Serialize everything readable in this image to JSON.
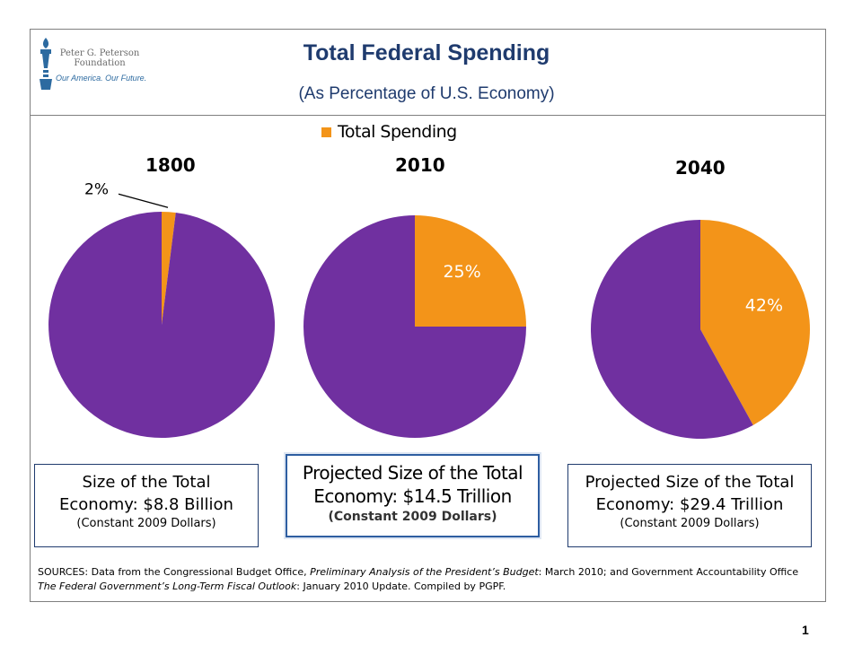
{
  "header": {
    "title": "Total Federal Spending",
    "subtitle": "(As Percentage of U.S. Economy)"
  },
  "logo": {
    "name_line1": "Peter G. Peterson",
    "name_line2": "Foundation",
    "tagline": "Our America. Our Future."
  },
  "colors": {
    "spending": "#f39419",
    "rest": "#7030a0",
    "title": "#1f3b6e",
    "box_border": "#1f3b6e"
  },
  "chart_data": [
    {
      "type": "pie",
      "title": "1800",
      "legend": [
        "Total Spending"
      ],
      "slices": [
        {
          "name": "Total Spending",
          "value": 2,
          "label": "2%"
        },
        {
          "name": "",
          "value": 98,
          "label": ""
        }
      ]
    },
    {
      "type": "pie",
      "title": "2010",
      "legend": [
        "Total Spending"
      ],
      "slices": [
        {
          "name": "Total Spending",
          "value": 25,
          "label": "25%"
        },
        {
          "name": "",
          "value": 75,
          "label": ""
        }
      ]
    },
    {
      "type": "pie",
      "title": "2040",
      "legend": [
        "Total Spending"
      ],
      "slices": [
        {
          "name": "Total Spending",
          "value": 42,
          "label": "42%"
        },
        {
          "name": "",
          "value": 58,
          "label": ""
        }
      ]
    }
  ],
  "economy_boxes": [
    {
      "line1a": "Size of the Total",
      "line1b": "Economy: $8.8 Billion",
      "line2": "(Constant 2009 Dollars)"
    },
    {
      "line1a": "Projected Size of the Total",
      "line1b": "Economy: $14.5 Trillion",
      "line2": "(Constant 2009 Dollars)"
    },
    {
      "line1a": "Projected Size of the Total",
      "line1b": "Economy: $29.4 Trillion",
      "line2": "(Constant 2009 Dollars)"
    }
  ],
  "sources": {
    "prefix": "SOURCES: Data from the Congressional Budget Office, ",
    "doc1": "Preliminary Analysis of the President’s Budget",
    "mid1": ": March 2010; and Government Accountability Office ",
    "doc2": "The Federal Government’s Long-Term Fiscal Outlook",
    "suffix": ": January 2010 Update. Compiled by PGPF."
  },
  "page_number": "1"
}
